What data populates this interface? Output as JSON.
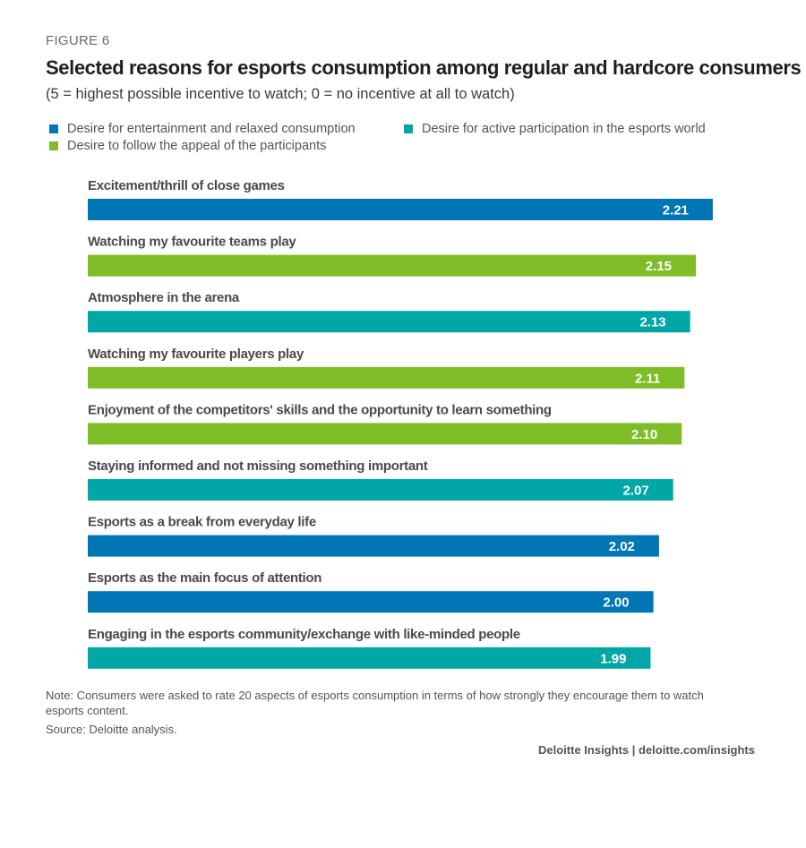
{
  "figure_label": "FIGURE 6",
  "chart_data": {
    "type": "bar",
    "orientation": "horizontal",
    "title": "Selected reasons for esports consumption among regular and hardcore consumers",
    "subtitle": "(5 = highest possible incentive to watch; 0 = no incentive at all to watch)",
    "legend_placement": "top-left",
    "grid": false,
    "legend": [
      {
        "key": "entertainment",
        "label": "Desire for entertainment and relaxed consumption",
        "color": "#0076b6"
      },
      {
        "key": "participation",
        "label": "Desire for active participation in the esports world",
        "color": "#00a7a6"
      },
      {
        "key": "appeal",
        "label": "Desire to follow the appeal of the participants",
        "color": "#7ebd27"
      }
    ],
    "categories": [
      "Excitement/thrill of close games",
      "Watching my favourite teams play",
      "Atmosphere in the arena",
      "Watching my favourite players play",
      "Enjoyment of the competitors' skills and the opportunity to learn something",
      "Staying informed and not missing something important",
      "Esports as a break from everyday life",
      "Esports as the main focus of attention",
      "Engaging in the esports community/exchange with like-minded people"
    ],
    "values": [
      2.21,
      2.15,
      2.13,
      2.11,
      2.1,
      2.07,
      2.02,
      2.0,
      1.99
    ],
    "value_labels": [
      "2.21",
      "2.15",
      "2.13",
      "2.11",
      "2.10",
      "2.07",
      "2.02",
      "2.00",
      "1.99"
    ],
    "groups": [
      "entertainment",
      "appeal",
      "participation",
      "appeal",
      "appeal",
      "participation",
      "entertainment",
      "entertainment",
      "participation"
    ]
  },
  "note": "Note: Consumers were asked to rate 20 aspects of esports consumption in terms of how strongly they encourage them to watch esports content.",
  "source": "Source: Deloitte analysis.",
  "credit": "Deloitte Insights | deloitte.com/insights"
}
